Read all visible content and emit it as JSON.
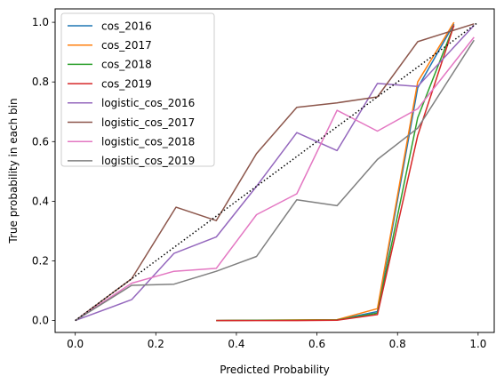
{
  "chart_data": {
    "type": "line",
    "xlabel": "Predicted Probability",
    "ylabel": "True probability in each bin",
    "xlim": [
      -0.05,
      1.04
    ],
    "ylim": [
      -0.04,
      1.045
    ],
    "xticks": [
      "0.0",
      "0.2",
      "0.4",
      "0.6",
      "0.8",
      "1.0"
    ],
    "yticks": [
      "0.0",
      "0.2",
      "0.4",
      "0.6",
      "0.8",
      "1.0"
    ],
    "grid": false,
    "legend_position": "top-left",
    "reference_line": {
      "x": [
        0,
        1
      ],
      "y": [
        0,
        1
      ],
      "style": "dotted",
      "color": "#000000"
    },
    "series": [
      {
        "name": "cos_2016",
        "color": "#1f77b4",
        "x": [
          0.35,
          0.45,
          0.55,
          0.65,
          0.75,
          0.85,
          0.94
        ],
        "y": [
          0.0,
          0.001,
          0.001,
          0.002,
          0.03,
          0.78,
          0.995
        ]
      },
      {
        "name": "cos_2017",
        "color": "#ff7f0e",
        "x": [
          0.35,
          0.45,
          0.55,
          0.65,
          0.75,
          0.85,
          0.94
        ],
        "y": [
          0.0,
          0.001,
          0.002,
          0.003,
          0.04,
          0.8,
          1.0
        ]
      },
      {
        "name": "cos_2018",
        "color": "#2ca02c",
        "x": [
          0.35,
          0.45,
          0.55,
          0.65,
          0.75,
          0.85,
          0.94
        ],
        "y": [
          0.0,
          0.001,
          0.001,
          0.002,
          0.025,
          0.68,
          0.99
        ]
      },
      {
        "name": "cos_2019",
        "color": "#d62728",
        "x": [
          0.35,
          0.45,
          0.55,
          0.65,
          0.75,
          0.85,
          0.94
        ],
        "y": [
          0.0,
          0.0,
          0.0,
          0.001,
          0.02,
          0.62,
          0.99
        ]
      },
      {
        "name": "logistic_cos_2016",
        "color": "#9467bd",
        "x": [
          0.0,
          0.14,
          0.245,
          0.35,
          0.45,
          0.55,
          0.65,
          0.75,
          0.85,
          0.99
        ],
        "y": [
          0.0,
          0.07,
          0.225,
          0.28,
          0.45,
          0.63,
          0.57,
          0.795,
          0.785,
          0.99
        ]
      },
      {
        "name": "logistic_cos_2017",
        "color": "#8c564b",
        "x": [
          0.0,
          0.14,
          0.25,
          0.35,
          0.45,
          0.55,
          0.65,
          0.75,
          0.85,
          0.99
        ],
        "y": [
          0.0,
          0.14,
          0.38,
          0.335,
          0.56,
          0.715,
          0.73,
          0.75,
          0.935,
          0.995
        ]
      },
      {
        "name": "logistic_cos_2018",
        "color": "#e377c2",
        "x": [
          0.0,
          0.14,
          0.245,
          0.35,
          0.45,
          0.55,
          0.65,
          0.75,
          0.85,
          0.99
        ],
        "y": [
          0.0,
          0.125,
          0.165,
          0.175,
          0.355,
          0.425,
          0.705,
          0.635,
          0.71,
          0.95
        ]
      },
      {
        "name": "logistic_cos_2019",
        "color": "#7f7f7f",
        "x": [
          0.0,
          0.14,
          0.245,
          0.35,
          0.45,
          0.55,
          0.65,
          0.75,
          0.85,
          0.99
        ],
        "y": [
          0.0,
          0.118,
          0.122,
          0.165,
          0.215,
          0.405,
          0.385,
          0.54,
          0.645,
          0.94
        ]
      }
    ]
  }
}
